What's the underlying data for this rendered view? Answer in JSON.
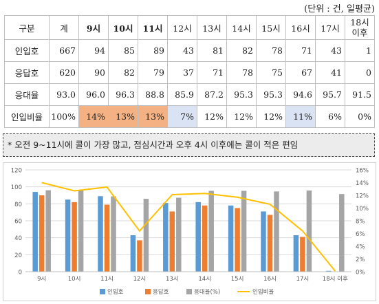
{
  "unit_note": "(단위 : 건, 일평균)",
  "table": {
    "header": [
      "구분",
      "계",
      "9시",
      "10시",
      "11시",
      "12시",
      "13시",
      "14시",
      "15시",
      "16시",
      "17시",
      "18시 이후"
    ],
    "rows": [
      {
        "label": "인입호",
        "cells": [
          "667",
          "94",
          "85",
          "89",
          "43",
          "81",
          "82",
          "78",
          "71",
          "43",
          "1"
        ]
      },
      {
        "label": "응답호",
        "cells": [
          "620",
          "90",
          "82",
          "79",
          "37",
          "71",
          "78",
          "75",
          "67",
          "41",
          "0"
        ]
      },
      {
        "label": "응대율",
        "cells": [
          "93.0",
          "96.0",
          "96.3",
          "88.8",
          "85.9",
          "87.2",
          "95.3",
          "95.3",
          "94.6",
          "95.7",
          "91.5"
        ]
      },
      {
        "label": "인입비율",
        "cells": [
          "100%",
          "14%",
          "13%",
          "13%",
          "7%",
          "12%",
          "12%",
          "12%",
          "11%",
          "6%",
          "0%"
        ]
      }
    ]
  },
  "note": "* 오전 9~11시에 콜이 가장 많고, 점심시간과 오후 4시 이후에는 콜이 적은 편임",
  "colors": {
    "incoming": "#5b9bd5",
    "answered": "#ed7d31",
    "rate": "#a5a5a5",
    "ratio": "#ffc000",
    "highlight_orange": "#f4b183",
    "highlight_blue": "#dae3f3"
  },
  "chart_data": {
    "type": "bar",
    "categories": [
      "9시",
      "10시",
      "11시",
      "12시",
      "13시",
      "14시",
      "15시",
      "16시",
      "17시",
      "18시 이후"
    ],
    "series": [
      {
        "name": "인입호",
        "type": "bar",
        "axis": "left",
        "values": [
          94,
          85,
          89,
          43,
          81,
          82,
          78,
          71,
          43,
          1
        ]
      },
      {
        "name": "응답호",
        "type": "bar",
        "axis": "left",
        "values": [
          90,
          82,
          79,
          37,
          71,
          78,
          75,
          67,
          41,
          0
        ]
      },
      {
        "name": "응대율(%)",
        "type": "bar",
        "axis": "left",
        "values": [
          96.0,
          96.3,
          88.8,
          85.9,
          87.2,
          95.3,
          95.3,
          94.6,
          95.7,
          91.5
        ]
      },
      {
        "name": "인입비율",
        "type": "line",
        "axis": "right",
        "values": [
          14,
          12.7,
          13.3,
          6.4,
          12.1,
          12.3,
          11.7,
          10.6,
          6.4,
          0.1
        ]
      }
    ],
    "left_axis": {
      "min": 0,
      "max": 120,
      "ticks": [
        "0",
        "20",
        "40",
        "60",
        "80",
        "100",
        "120"
      ]
    },
    "right_axis": {
      "min": 0,
      "max": 16,
      "ticks": [
        "0%",
        "2%",
        "4%",
        "6%",
        "8%",
        "10%",
        "12%",
        "14%",
        "16%"
      ]
    },
    "grid": true,
    "legend_position": "bottom"
  }
}
